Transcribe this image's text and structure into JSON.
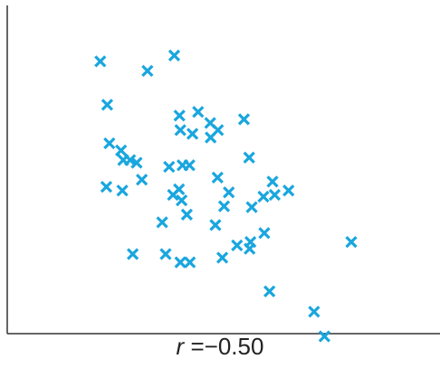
{
  "chart_data": {
    "type": "scatter",
    "title": "",
    "xlabel": "",
    "ylabel": "",
    "xlim": [
      0,
      100
    ],
    "ylim": [
      0,
      100
    ],
    "grid": false,
    "legend": "none",
    "marker": "x",
    "marker_color": "#1aa6de",
    "axis_color": "#333333",
    "annotation": {
      "variable": "r",
      "equals": "=",
      "value": "−0.50"
    },
    "points": [
      {
        "x": 21.5,
        "y": 84.8
      },
      {
        "x": 32.4,
        "y": 81.7
      },
      {
        "x": 38.6,
        "y": 86.7
      },
      {
        "x": 23.1,
        "y": 70.7
      },
      {
        "x": 44.1,
        "y": 68.4
      },
      {
        "x": 39.8,
        "y": 67.2
      },
      {
        "x": 46.9,
        "y": 64.8
      },
      {
        "x": 48.7,
        "y": 62.5
      },
      {
        "x": 54.7,
        "y": 66.0
      },
      {
        "x": 40.0,
        "y": 62.5
      },
      {
        "x": 42.8,
        "y": 61.3
      },
      {
        "x": 47.0,
        "y": 60.1
      },
      {
        "x": 23.6,
        "y": 58.2
      },
      {
        "x": 26.3,
        "y": 55.9
      },
      {
        "x": 28.4,
        "y": 52.8
      },
      {
        "x": 26.8,
        "y": 52.8
      },
      {
        "x": 29.9,
        "y": 51.9
      },
      {
        "x": 37.4,
        "y": 50.6
      },
      {
        "x": 40.5,
        "y": 51.1
      },
      {
        "x": 42.1,
        "y": 51.1
      },
      {
        "x": 55.9,
        "y": 53.6
      },
      {
        "x": 61.3,
        "y": 45.8
      },
      {
        "x": 22.9,
        "y": 44.1
      },
      {
        "x": 26.6,
        "y": 42.9
      },
      {
        "x": 31.1,
        "y": 46.4
      },
      {
        "x": 48.6,
        "y": 47.1
      },
      {
        "x": 51.2,
        "y": 42.3
      },
      {
        "x": 38.3,
        "y": 41.5
      },
      {
        "x": 39.7,
        "y": 43.3
      },
      {
        "x": 40.3,
        "y": 39.7
      },
      {
        "x": 59.2,
        "y": 40.9
      },
      {
        "x": 61.8,
        "y": 41.5
      },
      {
        "x": 65.0,
        "y": 42.9
      },
      {
        "x": 50.1,
        "y": 37.8
      },
      {
        "x": 56.5,
        "y": 37.5
      },
      {
        "x": 41.5,
        "y": 35.1
      },
      {
        "x": 35.8,
        "y": 32.6
      },
      {
        "x": 48.1,
        "y": 31.7
      },
      {
        "x": 59.4,
        "y": 29.1
      },
      {
        "x": 79.5,
        "y": 26.2
      },
      {
        "x": 53.1,
        "y": 25.1
      },
      {
        "x": 56.2,
        "y": 26.2
      },
      {
        "x": 29.0,
        "y": 22.3
      },
      {
        "x": 36.6,
        "y": 22.3
      },
      {
        "x": 40.0,
        "y": 19.6
      },
      {
        "x": 42.2,
        "y": 19.6
      },
      {
        "x": 49.7,
        "y": 21.1
      },
      {
        "x": 60.6,
        "y": 10.2
      },
      {
        "x": 70.9,
        "y": 3.6
      },
      {
        "x": 73.3,
        "y": -4.4
      },
      {
        "x": 56.0,
        "y": 24.0
      }
    ]
  }
}
